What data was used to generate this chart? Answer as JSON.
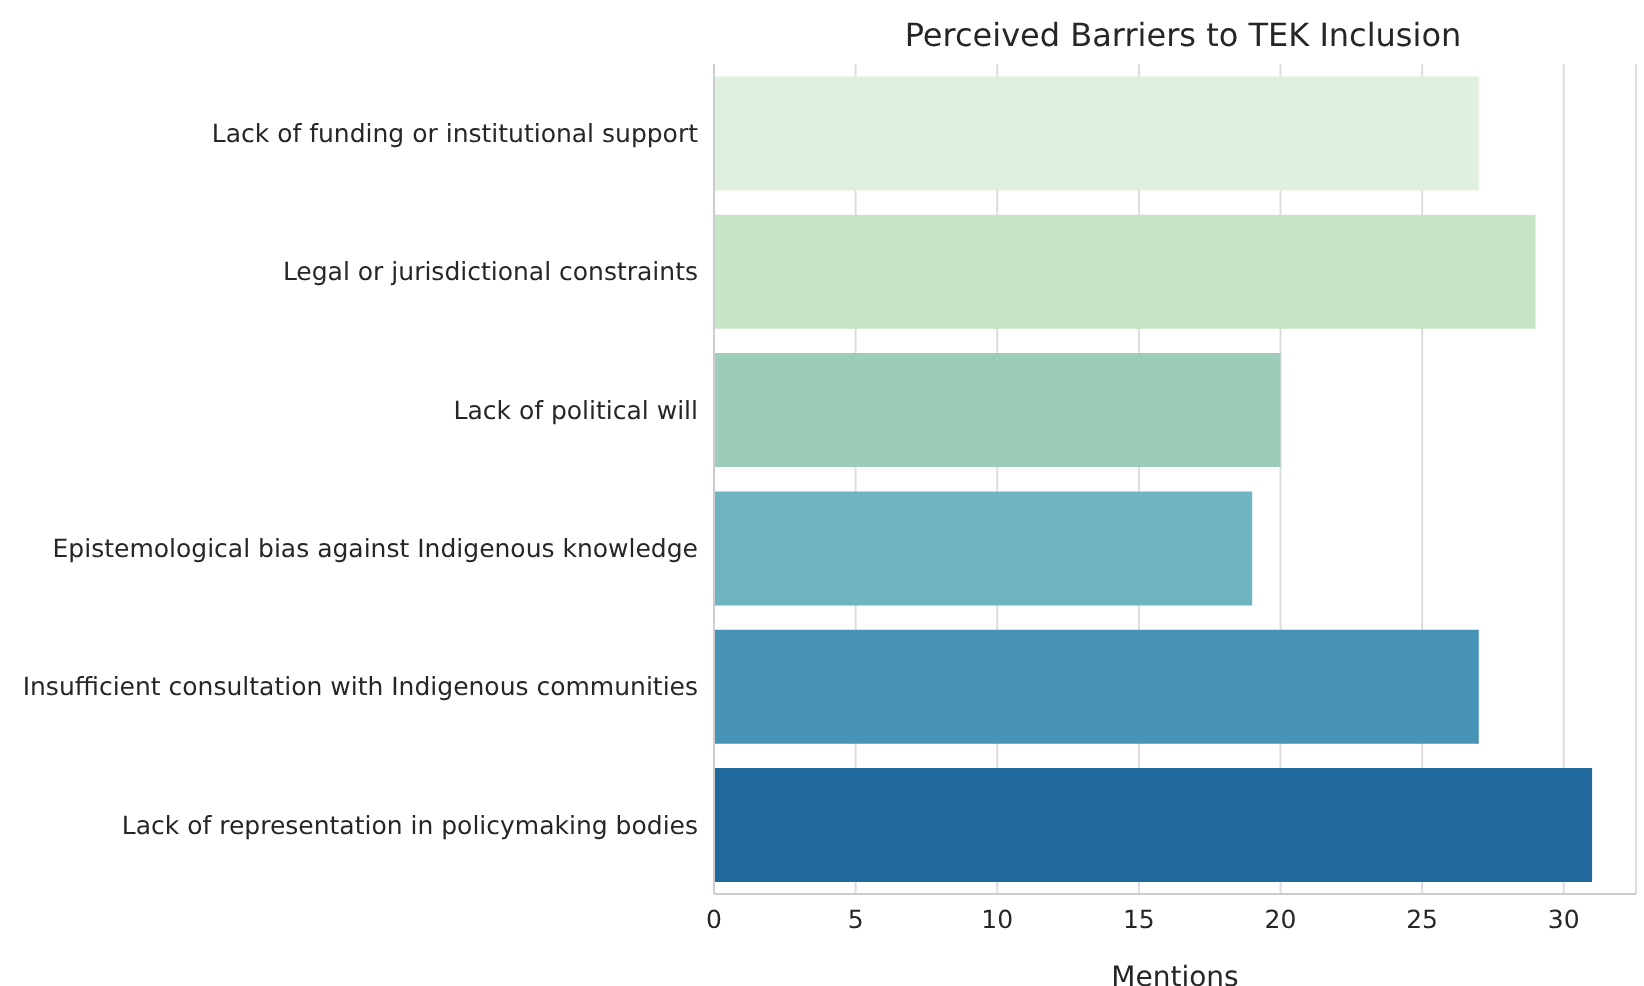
{
  "chart_data": {
    "type": "bar",
    "orientation": "horizontal",
    "title": "Perceived Barriers to TEK Inclusion",
    "xlabel": "Mentions",
    "categories": [
      "Lack of funding or institutional support",
      "Legal or jurisdictional constraints",
      "Lack of political will",
      "Epistemological bias against Indigenous knowledge",
      "Insufficient consultation with Indigenous communities",
      "Lack of representation in policymaking bodies"
    ],
    "values": [
      27,
      29,
      20,
      19,
      27,
      31
    ],
    "colors": [
      "#e0f0de",
      "#c6e5c4",
      "#9dcdb8",
      "#6fb5c1",
      "#4793b6",
      "#21699c"
    ],
    "xlim": [
      0,
      32.55
    ],
    "xticks": [
      0,
      5,
      10,
      15,
      20,
      25,
      30
    ],
    "grid": "x"
  }
}
